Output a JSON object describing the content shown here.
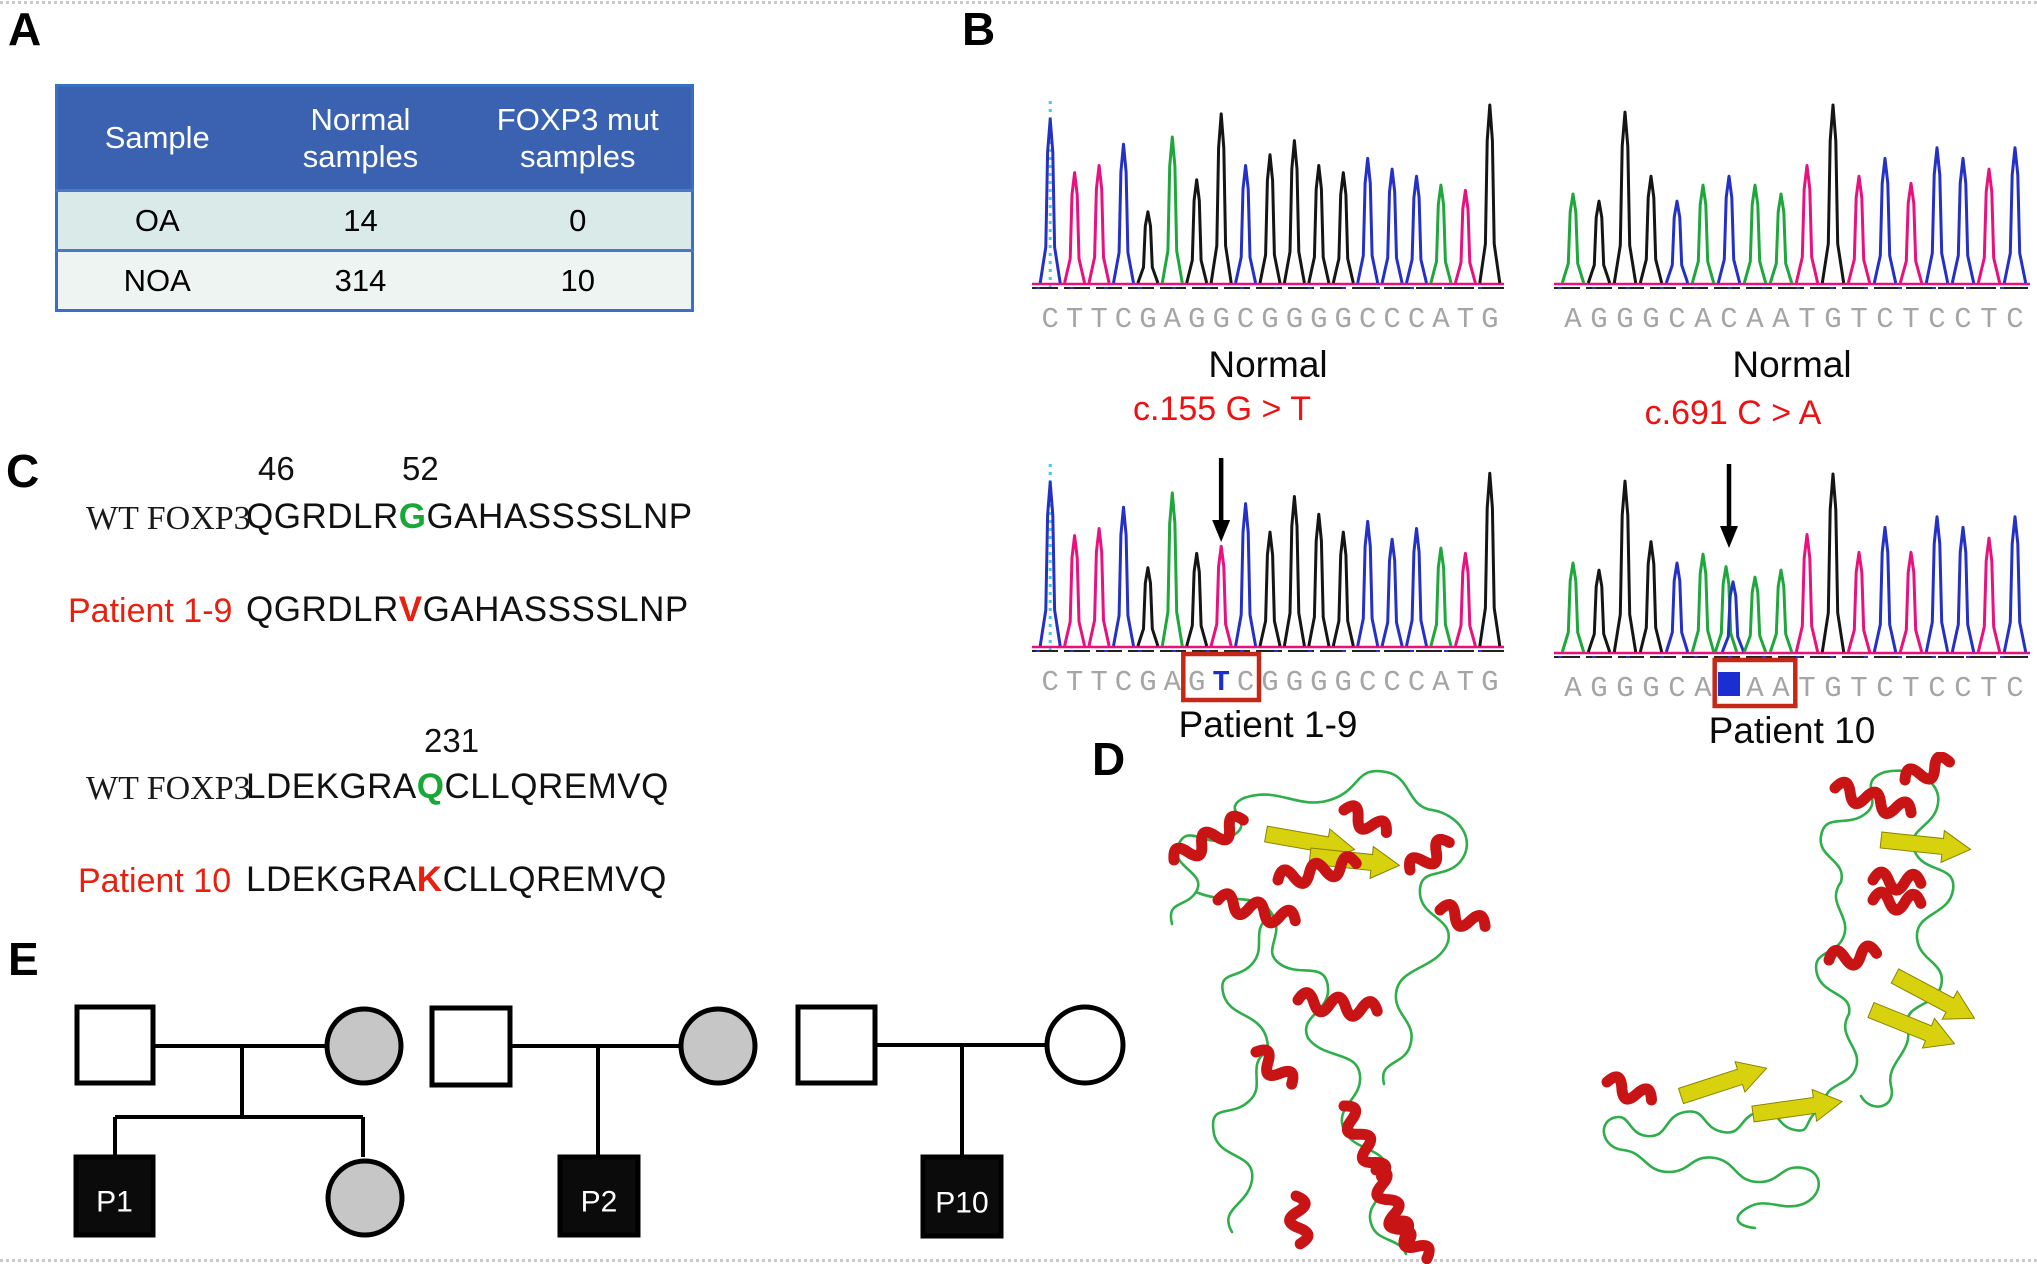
{
  "panel_labels": {
    "a": "A",
    "b": "B",
    "c": "C",
    "d": "D",
    "e": "E"
  },
  "table": {
    "headers": [
      "Sample",
      "Normal samples",
      "FOXP3 mut samples"
    ],
    "rows": [
      [
        "OA",
        "14",
        "0"
      ],
      [
        "NOA",
        "314",
        "10"
      ]
    ]
  },
  "chromatograms": {
    "normal1": {
      "sequence": "CTTCGAGGCGGGGCCCATG",
      "label": "Normal"
    },
    "normal2": {
      "sequence": "AGGGCACAATGTCTCCTC",
      "label": "Normal"
    },
    "patient19": {
      "sequence": "CTTCGAGTCGGGGCCCATG",
      "label": "Patient 1-9",
      "mutation_label": "c.155 G > T",
      "arrow_index": 7,
      "box_range": [
        6,
        8
      ],
      "blue_letter_index": 7
    },
    "patient10": {
      "sequence": "AGGGCA*AATGTCTCCTC",
      "label": "Patient 10",
      "mutation_label": "c.691 C > A",
      "arrow_index": 6,
      "box_range": [
        6,
        8
      ],
      "double_peak_index": 6
    }
  },
  "alignment": {
    "block1": {
      "pos_labels": [
        {
          "text": "46"
        },
        {
          "text": "52"
        }
      ],
      "rows": [
        {
          "label": "WT FOXP3",
          "style": "wt",
          "seq": "QGRDLRGGAHASSSSLNP",
          "hl_index": 6,
          "hl": "green"
        },
        {
          "label": "Patient 1-9",
          "style": "pt",
          "seq": "QGRDLRVGAHASSSSLNP",
          "hl_index": 6,
          "hl": "red"
        }
      ]
    },
    "block2": {
      "pos_labels": [
        {
          "text": "231"
        }
      ],
      "rows": [
        {
          "label": "WT FOXP3",
          "style": "wt",
          "seq": "LDEKGRAQCLLQREMVQ",
          "hl_index": 7,
          "hl": "green"
        },
        {
          "label": "Patient 10",
          "style": "pt",
          "seq": "LDEKGRAKCLLQREMVQ",
          "hl_index": 7,
          "hl": "red"
        }
      ]
    }
  },
  "pedigree": {
    "families": [
      {
        "parents": [
          {
            "sex": "male",
            "status": "unaffected"
          },
          {
            "sex": "female",
            "status": "carrier"
          }
        ],
        "children": [
          {
            "sex": "male",
            "status": "affected",
            "label": "P1"
          },
          {
            "sex": "female",
            "status": "carrier",
            "label": ""
          }
        ]
      },
      {
        "parents": [
          {
            "sex": "male",
            "status": "unaffected"
          },
          {
            "sex": "female",
            "status": "carrier"
          }
        ],
        "children": [
          {
            "sex": "male",
            "status": "affected",
            "label": "P2"
          }
        ]
      },
      {
        "parents": [
          {
            "sex": "male",
            "status": "unaffected"
          },
          {
            "sex": "female",
            "status": "unaffected"
          }
        ],
        "children": [
          {
            "sex": "male",
            "status": "affected",
            "label": "P10"
          }
        ]
      }
    ]
  },
  "colors": {
    "table_header_bg": "#3a62b1",
    "table_row_oa_bg": "#d9eae9",
    "table_row_noa_bg": "#eef4f2",
    "table_border": "#3a70c4",
    "annotation_red": "#ee1111",
    "sequence_gray": "#a5a5a5",
    "highlight_green": "#18a838",
    "highlight_red": "#e8200f",
    "mutant_blue": "#1b2fd0",
    "carrier_gray": "#c6c6c6",
    "affected_black": "#0b0b0b",
    "helix_red": "#c81414",
    "sheet_yellow": "#d8d20e",
    "coil_green": "#2fae4a",
    "base_A": "#1fa73c",
    "base_C": "#2431c4",
    "base_G": "#151515",
    "base_T": "#e8117e",
    "cursor_cyan": "#46c8e8"
  }
}
